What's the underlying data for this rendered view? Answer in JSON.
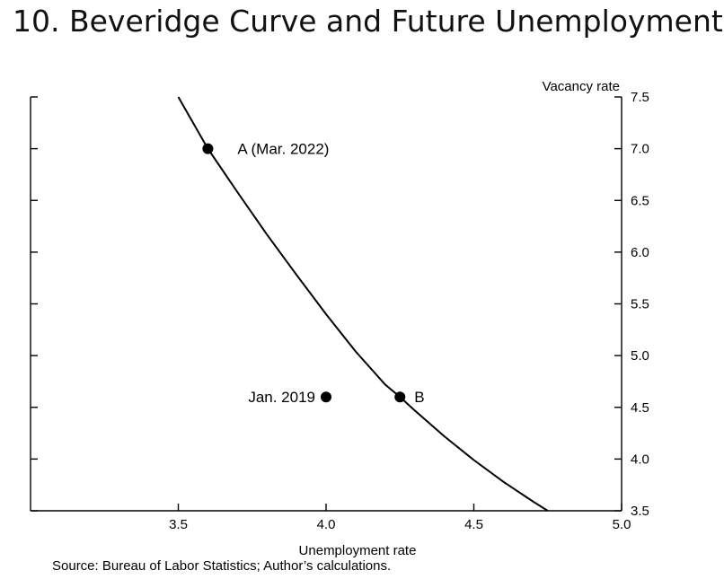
{
  "slide": {
    "title": "10.  Beveridge Curve and Future Unemployment",
    "source": "Source: Bureau of Labor Statistics; Author’s calculations."
  },
  "chart_data": {
    "type": "line",
    "title": "",
    "xlabel": "Unemployment rate",
    "ylabel": "Vacancy rate",
    "xlim": [
      3.0,
      5.0
    ],
    "ylim": [
      3.5,
      7.5
    ],
    "x_ticks": [
      "3.5",
      "4.0",
      "4.5",
      "5.0"
    ],
    "y_ticks": [
      "3.5",
      "4.0",
      "4.5",
      "5.0",
      "5.5",
      "6.0",
      "6.5",
      "7.0",
      "7.5"
    ],
    "y_axis_side": "right",
    "grid": false,
    "curve": {
      "x": [
        3.5,
        3.6,
        3.7,
        3.8,
        3.9,
        4.0,
        4.1,
        4.2,
        4.25,
        4.3,
        4.4,
        4.5,
        4.6,
        4.7,
        4.75
      ],
      "y": [
        7.5,
        7.0,
        6.58,
        6.17,
        5.78,
        5.4,
        5.04,
        4.72,
        4.6,
        4.47,
        4.22,
        3.99,
        3.78,
        3.59,
        3.5
      ],
      "color": "#000000"
    },
    "points": [
      {
        "label": "A (Mar. 2022)",
        "x": 3.6,
        "y": 7.0,
        "label_side": "right"
      },
      {
        "label": "B",
        "x": 4.25,
        "y": 4.6,
        "label_side": "right"
      },
      {
        "label": "Jan. 2019",
        "x": 4.0,
        "y": 4.6,
        "label_side": "left"
      }
    ]
  }
}
